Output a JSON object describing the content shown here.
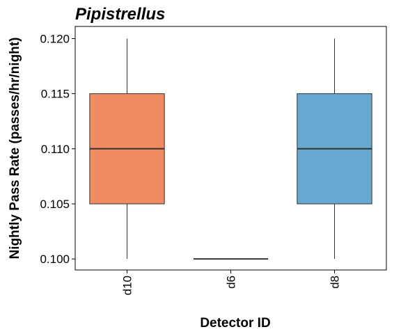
{
  "chart_data": {
    "type": "box",
    "title": "Pipistrellus",
    "xlabel": "Detector ID",
    "ylabel": "Nightly Pass Rate (passes/hr/night)",
    "categories": [
      "d10",
      "d6",
      "d8"
    ],
    "ylim": [
      0.099,
      0.1211
    ],
    "yticks": [
      0.1,
      0.105,
      0.11,
      0.115,
      0.12
    ],
    "ytick_labels": [
      "0.100",
      "0.105",
      "0.110",
      "0.115",
      "0.120"
    ],
    "grid": false,
    "boxes": [
      {
        "category": "d10",
        "min": 0.1,
        "q1": 0.105,
        "median": 0.11,
        "q3": 0.115,
        "max": 0.12,
        "color": "#F08B62"
      },
      {
        "category": "d6",
        "min": 0.1,
        "q1": 0.1,
        "median": 0.1,
        "q3": 0.1,
        "max": 0.1,
        "color": "#9E9E9E"
      },
      {
        "category": "d8",
        "min": 0.1,
        "q1": 0.105,
        "median": 0.11,
        "q3": 0.115,
        "max": 0.12,
        "color": "#66A8CF"
      }
    ]
  }
}
